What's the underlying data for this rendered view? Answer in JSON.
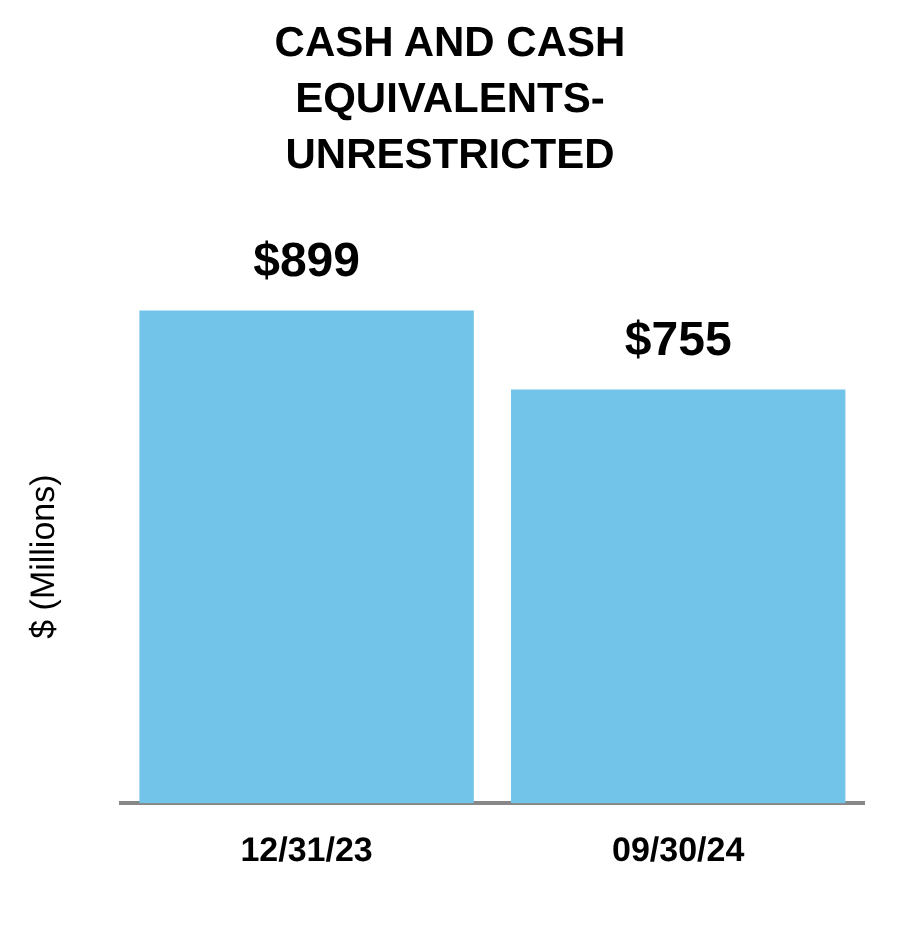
{
  "chart_data": {
    "type": "bar",
    "title": "CASH AND CASH EQUIVALENTS-UNRESTRICTED",
    "ylabel": "$ (Millions)",
    "categories": [
      "12/31/23",
      "09/30/24"
    ],
    "values": [
      899,
      755
    ],
    "value_labels": [
      "$899",
      "$755"
    ],
    "color": "#72c4e8",
    "grid": false,
    "legend": false,
    "tick_labels": "x"
  }
}
